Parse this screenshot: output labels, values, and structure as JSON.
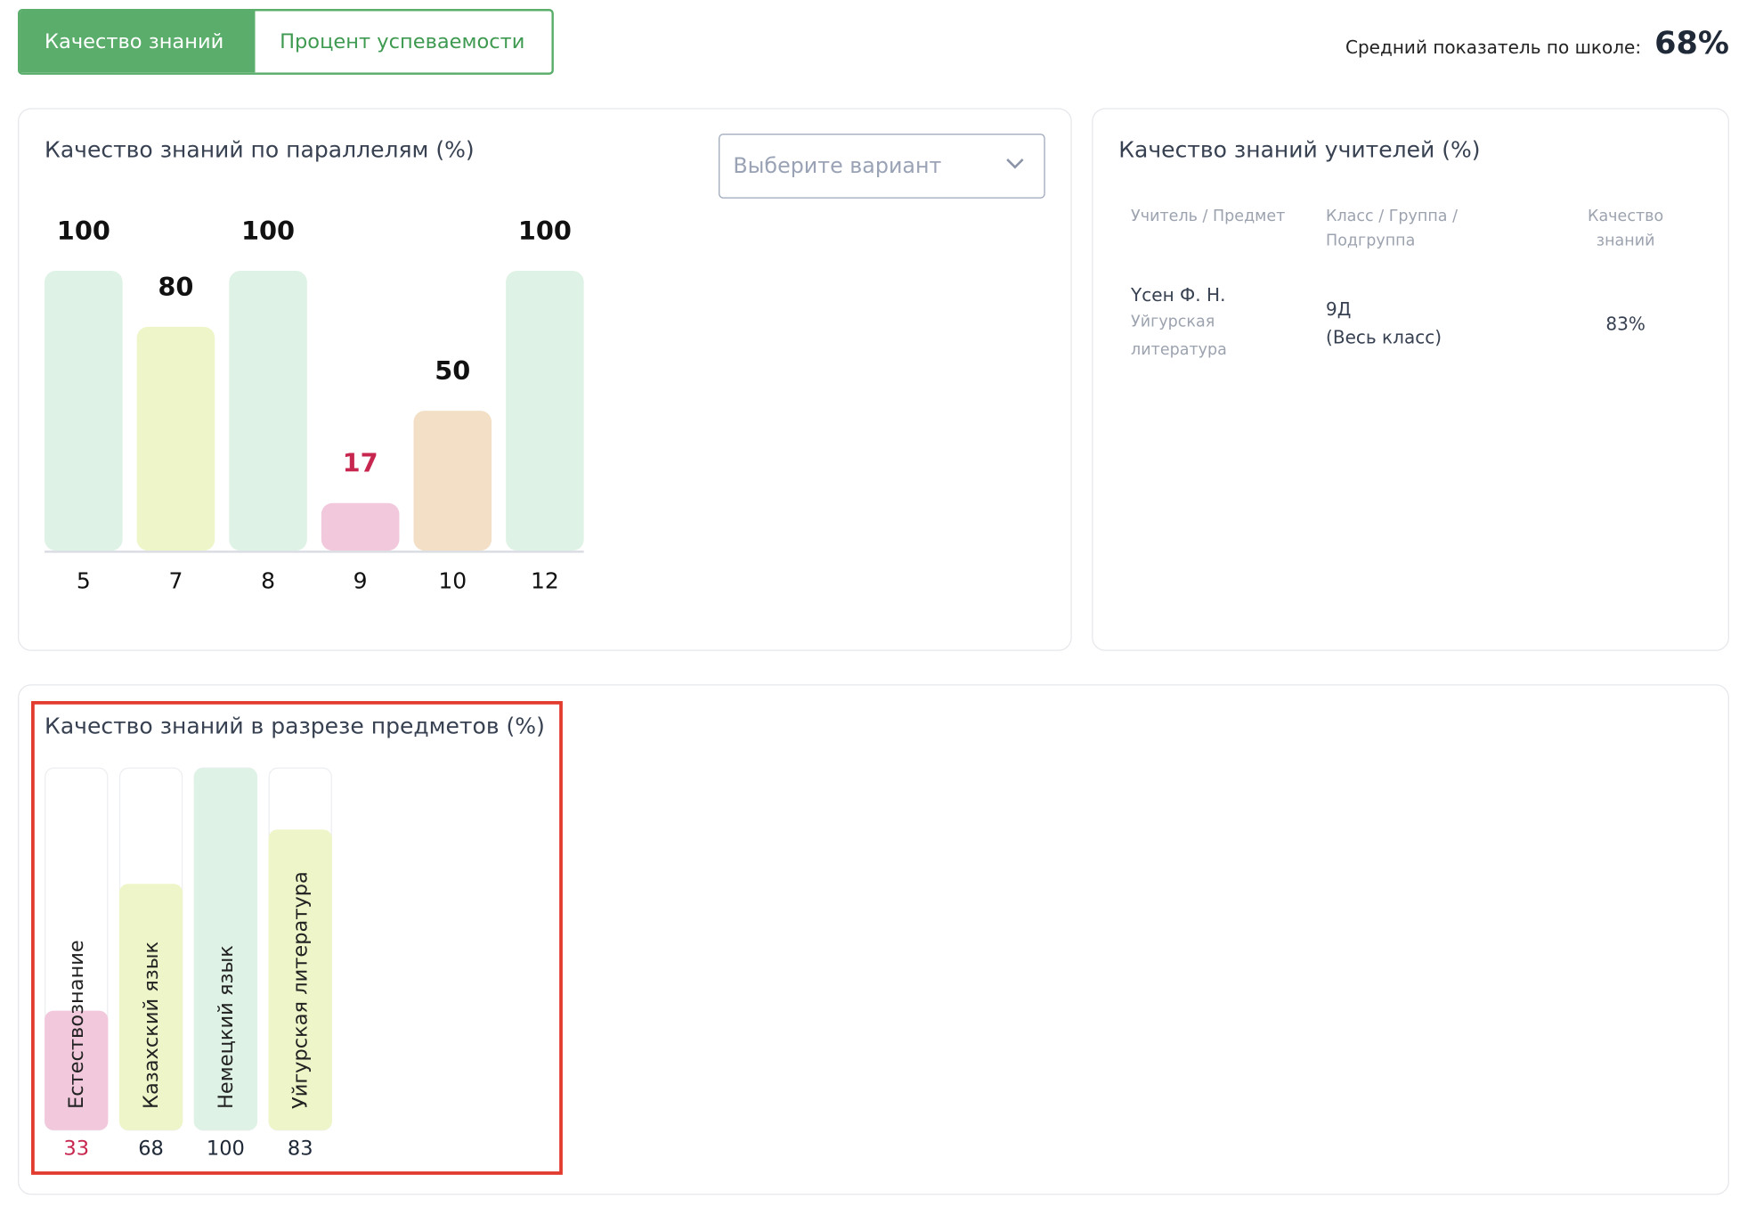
{
  "tabs": [
    "Качество знаний",
    "Процент успеваемости"
  ],
  "summary": {
    "label": "Средний показатель по школе:",
    "value": "68%"
  },
  "select": {
    "placeholder": "Выберите вариант"
  },
  "teacher_table": {
    "title": "Качество знаний учителей (%)",
    "headers": [
      "Учитель / Предмет",
      "Класс / Группа / Подгруппа",
      "Качество знаний"
    ],
    "rows": [
      {
        "teacher": "Үсен Ф. Н.",
        "subject": "Уйгурская литература",
        "class": "9Д",
        "group": "(Весь класс)",
        "quality": "83%"
      }
    ]
  },
  "chart_data": [
    {
      "type": "bar",
      "title": "Качество знаний по параллелям (%)",
      "categories": [
        "5",
        "7",
        "8",
        "9",
        "10",
        "12"
      ],
      "values": [
        100,
        80,
        100,
        17,
        50,
        100
      ],
      "colors": [
        "#dff2e6",
        "#eef5c8",
        "#dff2e6",
        "#f2c9dc",
        "#f3dfc6",
        "#dff2e6"
      ],
      "label_colors": [
        "#111111",
        "#111111",
        "#111111",
        "#c7264f",
        "#111111",
        "#111111"
      ],
      "ylim": [
        0,
        100
      ]
    },
    {
      "type": "track-bar",
      "title": "Качество знаний в разрезе предметов (%)",
      "categories": [
        "Естествознание",
        "Казахский язык",
        "Немецкий язык",
        "Уйгурская литература"
      ],
      "values": [
        33,
        68,
        100,
        83
      ],
      "colors": [
        "#f2c9dc",
        "#eef5c8",
        "#dff2e6",
        "#eef5c8"
      ],
      "label_colors": [
        "#c7264f",
        "#1f2937",
        "#1f2937",
        "#1f2937"
      ],
      "ylim": [
        0,
        100
      ]
    }
  ]
}
